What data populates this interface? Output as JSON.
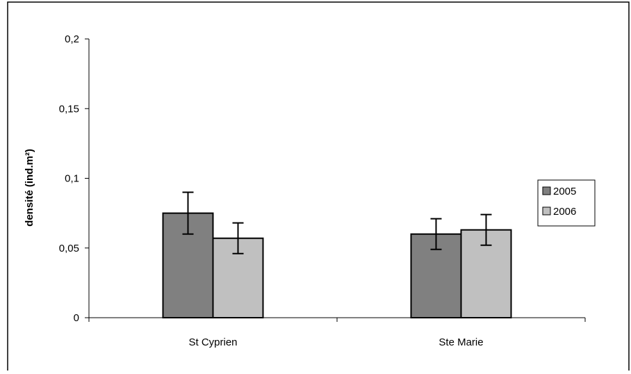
{
  "colors": {
    "series_2005": "#808080",
    "series_2006": "#c0c0c0",
    "stroke": "#000000",
    "background": "#ffffff"
  },
  "chart_data": {
    "type": "bar",
    "title": "",
    "xlabel": "",
    "ylabel": "densité (ind.m²)",
    "categories": [
      "St Cyprien",
      "Ste Marie"
    ],
    "series": [
      {
        "name": "2005",
        "values": [
          0.075,
          0.06
        ],
        "error": [
          0.015,
          0.011
        ],
        "color": "#808080"
      },
      {
        "name": "2006",
        "values": [
          0.057,
          0.063
        ],
        "error": [
          0.011,
          0.011
        ],
        "color": "#c0c0c0"
      }
    ],
    "ylim": [
      0,
      0.2
    ],
    "yticks": [
      0,
      0.05,
      0.1,
      0.15,
      0.2
    ],
    "ytick_labels": [
      "0",
      "0,05",
      "0,1",
      "0,15",
      "0,2"
    ],
    "grid": false,
    "legend": "right"
  }
}
